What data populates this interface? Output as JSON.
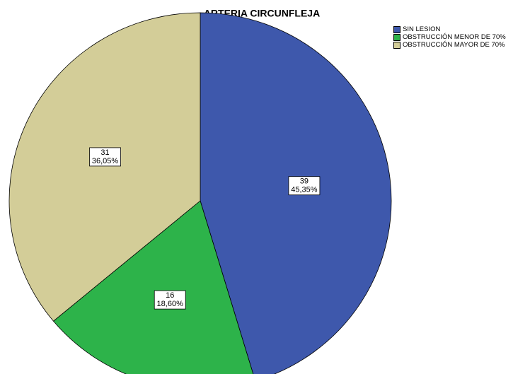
{
  "chart_data": {
    "type": "pie",
    "title": "ARTERIA CIRCUNFLEJA",
    "categories": [
      "SIN LESION",
      "OBSTRUCCIÓN MENOR DE 70%",
      "OBSTRUCCIÓN MAYOR DE 70%"
    ],
    "values": [
      39,
      16,
      31
    ],
    "percentages": [
      45.35,
      18.6,
      36.05
    ],
    "percentage_labels": [
      "45,35%",
      "18,60%",
      "36,05%"
    ],
    "colors": [
      "#3e58ac",
      "#2db34a",
      "#d3cd98"
    ],
    "legend": "upper right"
  }
}
